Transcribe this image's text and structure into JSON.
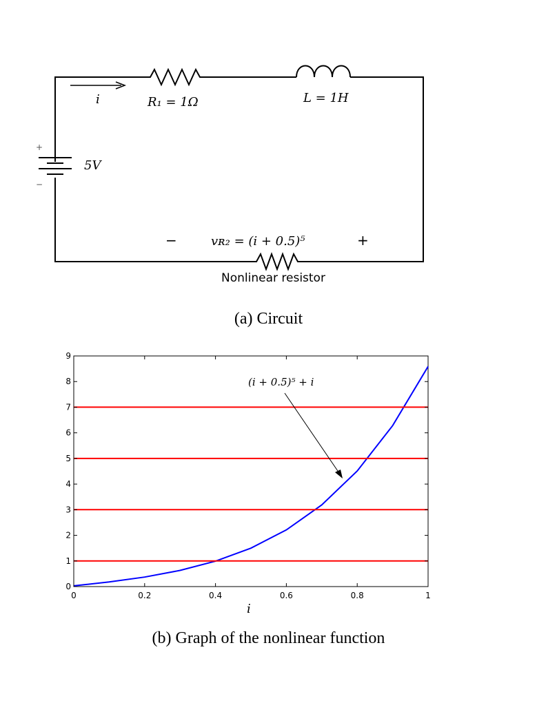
{
  "circuit": {
    "current_label": "i",
    "r1_label": "R₁ = 1Ω",
    "inductor_label": "L = 1H",
    "source_label": "5V",
    "source_plus": "+",
    "source_minus": "−",
    "vr2_label": "vʀ₂ = (i + 0.5)⁵",
    "vr2_minus": "−",
    "vr2_plus": "+",
    "nonlinear_label": "Nonlinear resistor"
  },
  "captions": {
    "a": "(a) Circuit",
    "b": "(b) Graph of the nonlinear function"
  },
  "chart_data": {
    "type": "line",
    "title": "",
    "xlabel": "i",
    "ylabel": "",
    "xlim": [
      0,
      1
    ],
    "ylim": [
      0,
      9
    ],
    "x_ticks": [
      0,
      0.2,
      0.4,
      0.6,
      0.8,
      1
    ],
    "x_tick_labels": [
      "0",
      "0.2",
      "0.4",
      "0.6",
      "0.8",
      "1"
    ],
    "y_ticks": [
      0,
      1,
      2,
      3,
      4,
      5,
      6,
      7,
      8,
      9
    ],
    "y_tick_labels": [
      "0",
      "1",
      "2",
      "3",
      "4",
      "5",
      "6",
      "7",
      "8",
      "9"
    ],
    "grid": false,
    "annotation": "(i + 0.5)⁵ + i",
    "series": [
      {
        "color": "#0000ff",
        "x": [
          0,
          0.1,
          0.2,
          0.3,
          0.4,
          0.5,
          0.6,
          0.7,
          0.8,
          0.9,
          1.0
        ],
        "y": [
          0.03,
          0.18,
          0.37,
          0.63,
          0.99,
          1.5,
          2.21,
          3.19,
          4.51,
          6.28,
          8.59
        ]
      },
      {
        "color": "#ff0000",
        "x": [
          0,
          1
        ],
        "y": [
          1,
          1
        ]
      },
      {
        "color": "#ff0000",
        "x": [
          0,
          1
        ],
        "y": [
          3,
          3
        ]
      },
      {
        "color": "#ff0000",
        "x": [
          0,
          1
        ],
        "y": [
          5,
          5
        ]
      },
      {
        "color": "#ff0000",
        "x": [
          0,
          1
        ],
        "y": [
          7,
          7
        ]
      }
    ]
  }
}
